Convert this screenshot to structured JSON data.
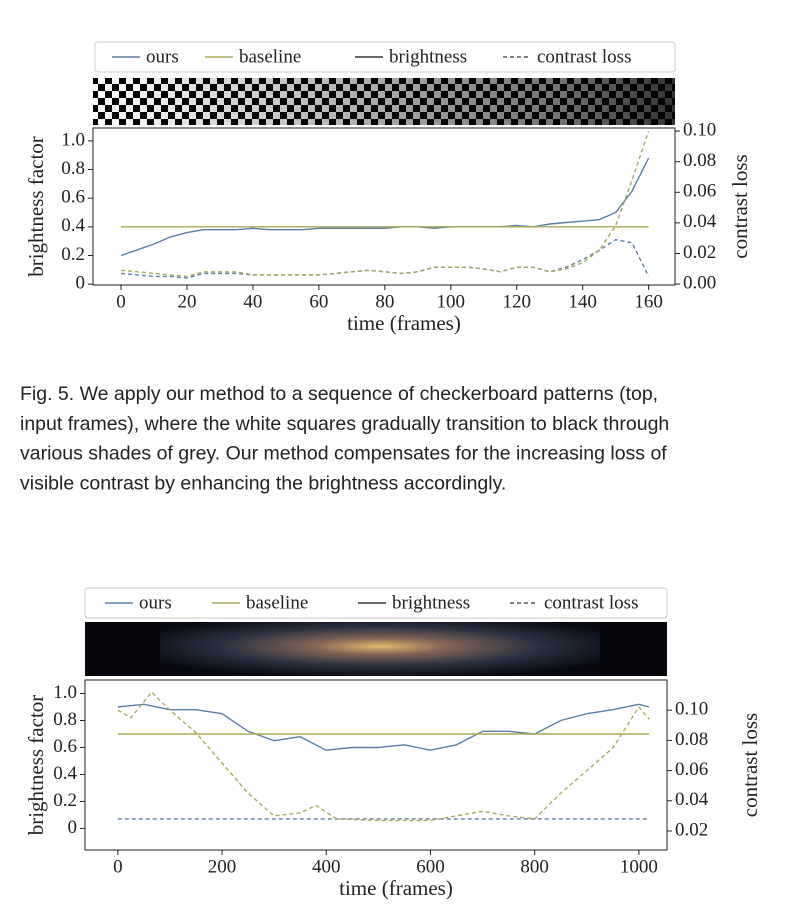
{
  "caption": {
    "lines": [
      "Fig. 5.  We apply our method to a sequence of checkerboard patterns (top,",
      "input frames), where the white squares gradually transition to black through",
      "various shades of grey. Our method compensates for the increasing loss of",
      "visible contrast by enhancing the brightness accordingly."
    ]
  },
  "chart_data": [
    {
      "type": "line",
      "ylabel": "brightness factor",
      "y2label": "contrast loss",
      "xlabel": "time (frames)",
      "legend": [
        {
          "label": "ours",
          "color": "#5b7fa6",
          "dashed": false
        },
        {
          "label": "baseline",
          "color": "#a9a85c",
          "dashed": false
        },
        {
          "label": "brightness",
          "color": "#333333",
          "dashed": false
        },
        {
          "label": "contrast loss",
          "color": "#555555",
          "dashed": true
        }
      ],
      "xlim": [
        -8.5,
        168
      ],
      "xticks": [
        0,
        20,
        40,
        60,
        80,
        100,
        120,
        140,
        160
      ],
      "ylim": [
        -0.006,
        1.09
      ],
      "yticks": [
        0,
        0.2,
        0.4,
        0.6,
        0.8,
        {
          "value": 1.0,
          "label": "1.0"
        }
      ],
      "y2lim": [
        -0.0006,
        0.102
      ],
      "y2ticks": [
        {
          "value": 0,
          "label": "0.00"
        },
        0.02,
        0.04,
        0.06,
        0.08,
        {
          "value": 0.1,
          "label": "0.10"
        }
      ],
      "series": [
        {
          "color": "#5b7fa6",
          "dashed": false,
          "axis": "y",
          "x": [
            0,
            5,
            10,
            15,
            20,
            25,
            30,
            35,
            40,
            45,
            50,
            55,
            60,
            65,
            70,
            75,
            80,
            85,
            90,
            95,
            100,
            105,
            110,
            115,
            120,
            125,
            130,
            135,
            140,
            145,
            150,
            155,
            160
          ],
          "values": [
            0.2,
            0.24,
            0.28,
            0.33,
            0.36,
            0.38,
            0.38,
            0.38,
            0.39,
            0.38,
            0.38,
            0.38,
            0.39,
            0.39,
            0.39,
            0.39,
            0.39,
            0.4,
            0.4,
            0.39,
            0.4,
            0.4,
            0.4,
            0.4,
            0.41,
            0.4,
            0.42,
            0.43,
            0.44,
            0.45,
            0.5,
            0.65,
            0.88
          ]
        },
        {
          "color": "#a9a85c",
          "dashed": false,
          "axis": "y",
          "x": [
            0,
            160
          ],
          "values": [
            0.4,
            0.4
          ]
        },
        {
          "color": "#5b7fa6",
          "dashed": true,
          "axis": "y2",
          "x": [
            0,
            5,
            10,
            15,
            20,
            25,
            30,
            35,
            40,
            45,
            50,
            55,
            60,
            65,
            70,
            75,
            80,
            85,
            90,
            95,
            100,
            105,
            110,
            115,
            120,
            125,
            130,
            135,
            140,
            145,
            150,
            155,
            160
          ],
          "values": [
            0.007,
            0.006,
            0.005,
            0.005,
            0.004,
            0.007,
            0.007,
            0.007,
            0.006,
            0.006,
            0.006,
            0.006,
            0.006,
            0.007,
            0.008,
            0.009,
            0.008,
            0.007,
            0.008,
            0.011,
            0.011,
            0.011,
            0.01,
            0.008,
            0.011,
            0.011,
            0.008,
            0.011,
            0.016,
            0.022,
            0.029,
            0.027,
            0.005
          ]
        },
        {
          "color": "#a9a85c",
          "dashed": true,
          "axis": "y2",
          "x": [
            0,
            5,
            10,
            15,
            20,
            25,
            30,
            35,
            40,
            45,
            50,
            55,
            60,
            65,
            70,
            75,
            80,
            85,
            90,
            95,
            100,
            105,
            110,
            115,
            120,
            125,
            130,
            135,
            140,
            145,
            150,
            155,
            160
          ],
          "values": [
            0.009,
            0.008,
            0.007,
            0.006,
            0.005,
            0.008,
            0.008,
            0.008,
            0.006,
            0.006,
            0.006,
            0.006,
            0.006,
            0.007,
            0.008,
            0.009,
            0.008,
            0.007,
            0.008,
            0.011,
            0.011,
            0.011,
            0.01,
            0.008,
            0.011,
            0.011,
            0.008,
            0.01,
            0.014,
            0.022,
            0.038,
            0.068,
            0.1
          ]
        }
      ]
    },
    {
      "type": "line",
      "ylabel": "brightness factor",
      "y2label": "contrast loss",
      "xlabel": "time (frames)",
      "legend": [
        {
          "label": "ours",
          "color": "#5b7fa6",
          "dashed": false
        },
        {
          "label": "baseline",
          "color": "#a9a85c",
          "dashed": false
        },
        {
          "label": "brightness",
          "color": "#333333",
          "dashed": false
        },
        {
          "label": "contrast loss",
          "color": "#555555",
          "dashed": true
        }
      ],
      "xlim": [
        -63,
        1054
      ],
      "xticks": [
        0,
        200,
        400,
        600,
        800,
        1000
      ],
      "ylim": [
        -0.16,
        1.1
      ],
      "yticks": [
        0,
        0.2,
        0.4,
        0.6,
        0.8,
        {
          "value": 1.0,
          "label": "1.0"
        }
      ],
      "y2lim": [
        0.0074,
        0.12
      ],
      "y2ticks": [
        0.02,
        0.04,
        0.06,
        0.08,
        {
          "value": 0.1,
          "label": "0.10"
        }
      ],
      "series": [
        {
          "color": "#5b7fa6",
          "dashed": false,
          "axis": "y",
          "x": [
            0,
            50,
            100,
            150,
            200,
            250,
            300,
            350,
            400,
            450,
            500,
            550,
            600,
            650,
            700,
            750,
            800,
            850,
            900,
            950,
            1000,
            1020
          ],
          "values": [
            0.9,
            0.92,
            0.88,
            0.88,
            0.85,
            0.72,
            0.65,
            0.68,
            0.58,
            0.6,
            0.6,
            0.62,
            0.58,
            0.62,
            0.72,
            0.72,
            0.7,
            0.8,
            0.85,
            0.88,
            0.92,
            0.9
          ]
        },
        {
          "color": "#a9a85c",
          "dashed": false,
          "axis": "y",
          "x": [
            0,
            1020
          ],
          "values": [
            0.7,
            0.7
          ]
        },
        {
          "color": "#5b7fa6",
          "dashed": true,
          "axis": "y2",
          "x": [
            0,
            1020
          ],
          "values": [
            0.028,
            0.028
          ]
        },
        {
          "color": "#a9a85c",
          "dashed": true,
          "axis": "y2",
          "x": [
            0,
            25,
            65,
            100,
            150,
            200,
            250,
            300,
            350,
            380,
            420,
            500,
            600,
            700,
            750,
            800,
            850,
            900,
            950,
            1000,
            1020
          ],
          "values": [
            0.1,
            0.095,
            0.112,
            0.1,
            0.085,
            0.065,
            0.045,
            0.03,
            0.032,
            0.037,
            0.028,
            0.027,
            0.027,
            0.033,
            0.03,
            0.028,
            0.045,
            0.06,
            0.075,
            0.102,
            0.094
          ]
        }
      ]
    }
  ]
}
